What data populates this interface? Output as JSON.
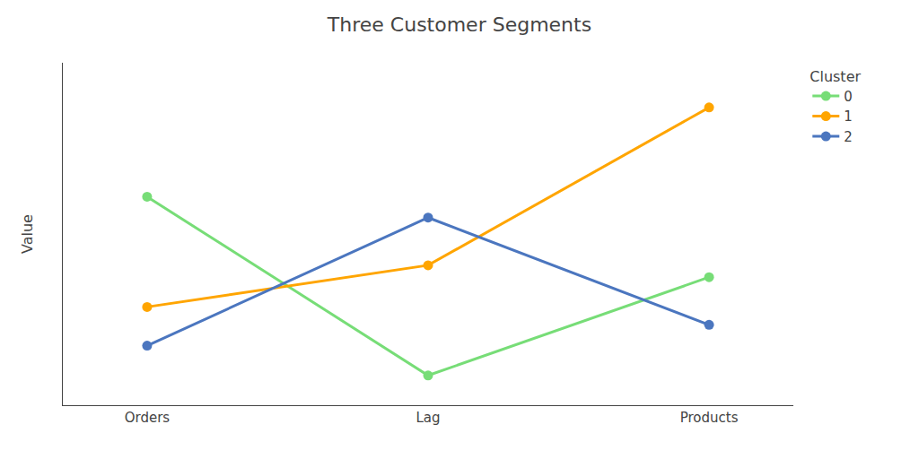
{
  "chart_data": {
    "type": "line",
    "title": "Three Customer Segments",
    "y_label": "Value",
    "categories": [
      "Orders",
      "Lag",
      "Products"
    ],
    "series": [
      {
        "name": "0",
        "color": "#77DD77",
        "values": [
          0.65,
          0.05,
          0.38
        ]
      },
      {
        "name": "1",
        "color": "#FFA500",
        "values": [
          0.28,
          0.42,
          0.95
        ]
      },
      {
        "name": "2",
        "color": "#4B76BF",
        "values": [
          0.15,
          0.58,
          0.22
        ]
      }
    ],
    "ylim": [
      -0.05,
      1.1
    ],
    "yticks": [],
    "tick_labels": "x",
    "grid": false,
    "legend": "upper right",
    "legend_title": "Cluster",
    "marker": "circle"
  }
}
